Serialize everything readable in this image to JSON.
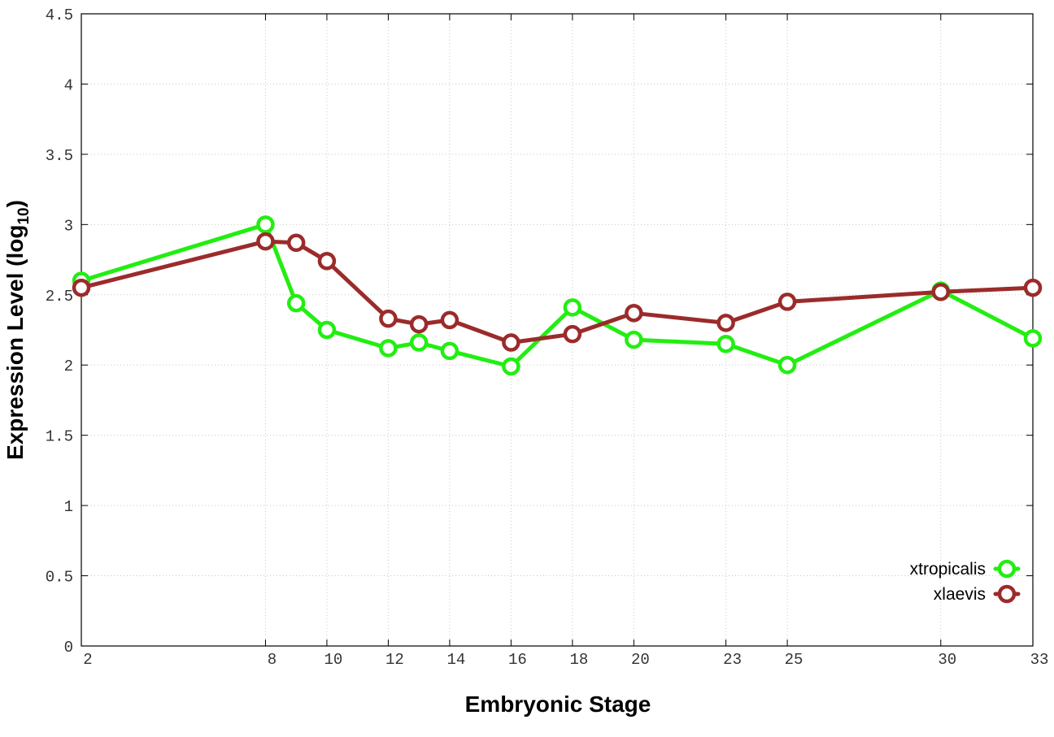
{
  "chart_data": {
    "type": "line",
    "xlabel": "Embryonic Stage",
    "ylabel_main": "Expression Level (log",
    "ylabel_sub": "10",
    "ylabel_close": ")",
    "x_ticks": [
      2,
      8,
      10,
      12,
      14,
      16,
      18,
      20,
      23,
      25,
      30,
      33
    ],
    "x_tick_labels": [
      "2",
      "8",
      "10",
      "12",
      "14",
      "16",
      "18",
      "20",
      "23",
      "25",
      "30",
      "33"
    ],
    "y_ticks": [
      0,
      0.5,
      1,
      1.5,
      2,
      2.5,
      3,
      3.5,
      4,
      4.5
    ],
    "y_tick_labels": [
      "0",
      "0.5",
      "1",
      "1.5",
      "2",
      "2.5",
      "3",
      "3.5",
      "4",
      "4.5"
    ],
    "xlim": [
      2,
      33
    ],
    "ylim": [
      0,
      4.5
    ],
    "grid": true,
    "legend_position": "bottom-right",
    "series": [
      {
        "name": "xtropicalis",
        "color": "#22ee11",
        "x": [
          2,
          8,
          9,
          10,
          12,
          13,
          14,
          16,
          18,
          20,
          23,
          25,
          30,
          33
        ],
        "y": [
          2.6,
          3.0,
          2.44,
          2.25,
          2.12,
          2.16,
          2.1,
          1.99,
          2.41,
          2.18,
          2.15,
          2.0,
          2.53,
          2.19
        ]
      },
      {
        "name": "xlaevis",
        "color": "#9b2b2b",
        "x": [
          2,
          8,
          9,
          10,
          12,
          13,
          14,
          16,
          18,
          20,
          23,
          25,
          30,
          33
        ],
        "y": [
          2.55,
          2.88,
          2.87,
          2.74,
          2.33,
          2.29,
          2.32,
          2.16,
          2.22,
          2.37,
          2.3,
          2.45,
          2.52,
          2.55
        ]
      }
    ]
  }
}
